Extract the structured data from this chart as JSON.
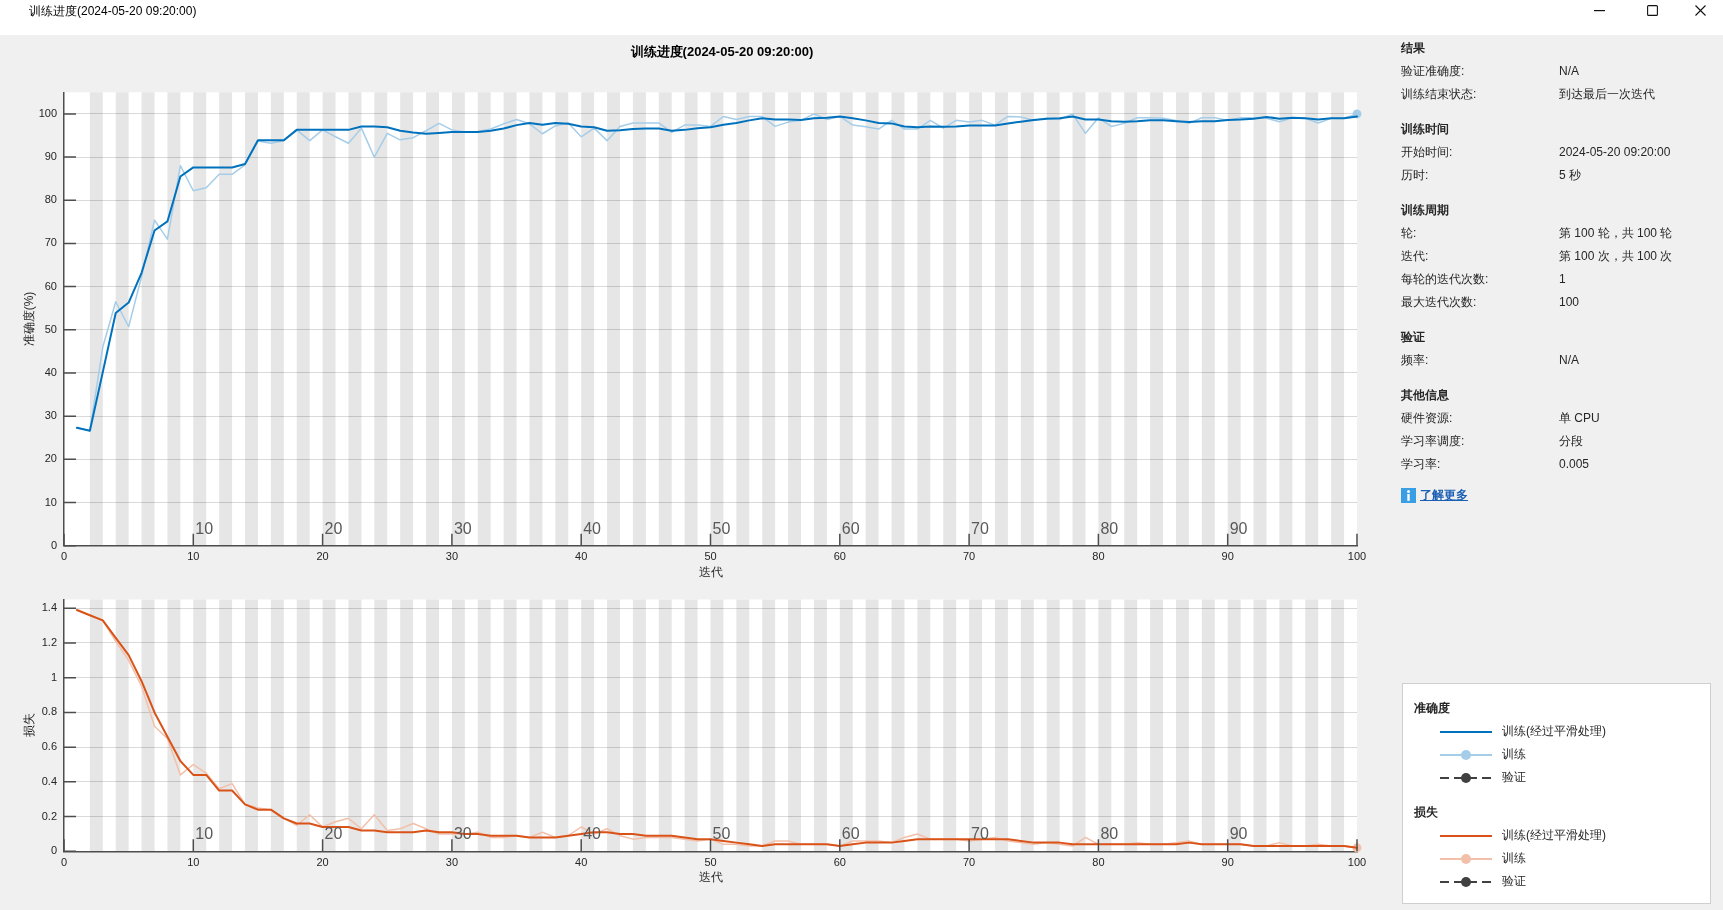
{
  "chart_data": [
    {
      "type": "other",
      "title": "训练进度(2024-05-20 09:20:00)"
    },
    {
      "type": "line",
      "title": "训练进度(2024-05-20 09:20:00)",
      "xlabel": "迭代",
      "ylabel": "准确度(%)",
      "legend_title": "准确度",
      "legend": "bottom right",
      "grid": "y",
      "xlim": [
        0,
        100
      ],
      "xticks": [
        0,
        10,
        20,
        30,
        40,
        50,
        60,
        70,
        80,
        90,
        100
      ],
      "ylim": [
        0,
        105
      ],
      "yticks": [
        0,
        10,
        20,
        30,
        40,
        50,
        60,
        70,
        80,
        90,
        100
      ],
      "x": [
        1,
        2,
        3,
        4,
        5,
        6,
        7,
        8,
        9,
        10,
        11,
        12,
        13,
        14,
        15,
        16,
        17,
        18,
        19,
        20,
        21,
        22,
        23,
        24,
        25,
        26,
        27,
        28,
        29,
        30,
        31,
        32,
        33,
        34,
        35,
        36,
        37,
        38,
        39,
        40,
        41,
        42,
        43,
        44,
        45,
        46,
        47,
        48,
        49,
        50,
        51,
        52,
        53,
        54,
        55,
        56,
        57,
        58,
        59,
        60,
        61,
        62,
        63,
        64,
        65,
        66,
        67,
        68,
        69,
        70,
        71,
        72,
        73,
        74,
        75,
        76,
        77,
        78,
        79,
        80,
        81,
        82,
        83,
        84,
        85,
        86,
        87,
        88,
        89,
        90,
        91,
        92,
        93,
        94,
        95,
        96,
        97,
        98,
        99,
        100
      ],
      "series": [
        {
          "name": "训练(经过平滑处理)",
          "color": "#0072bd",
          "values": [
            27.3,
            26.6,
            40.2,
            53.9,
            56.3,
            63.2,
            73,
            75.1,
            85.5,
            87.6,
            87.6,
            87.6,
            87.6,
            88.4,
            93.9,
            93.9,
            93.9,
            96.3,
            96.3,
            96.3,
            96.3,
            96.3,
            97.1,
            97.1,
            96.9,
            96.1,
            95.7,
            95.4,
            95.6,
            95.8,
            95.8,
            95.8,
            96.1,
            96.6,
            97.4,
            97.9,
            97.5,
            97.9,
            97.7,
            97.1,
            96.9,
            96.1,
            96.2,
            96.5,
            96.6,
            96.6,
            96.1,
            96.3,
            96.7,
            96.9,
            97.5,
            97.9,
            98.5,
            99,
            98.7,
            98.7,
            98.6,
            99,
            99.1,
            99.4,
            99,
            98.5,
            97.9,
            97.8,
            97.1,
            96.9,
            97.1,
            97,
            97.1,
            97.3,
            97.3,
            97.3,
            97.8,
            98.2,
            98.6,
            98.9,
            99,
            99.4,
            98.7,
            98.7,
            98.3,
            98.2,
            98.3,
            98.5,
            98.5,
            98.3,
            98.1,
            98.3,
            98.3,
            98.6,
            98.7,
            98.9,
            99.3,
            98.9,
            99.1,
            99,
            98.7,
            99,
            99,
            99.4
          ]
        },
        {
          "name": "训练",
          "color": "#a6cde8",
          "values": [
            27.3,
            26.6,
            46,
            56.5,
            50.7,
            62.3,
            75.4,
            71,
            88,
            82.2,
            82.9,
            86,
            86,
            88.2,
            93.7,
            93.2,
            93.8,
            96.3,
            93.8,
            96.3,
            94.7,
            93.2,
            96.7,
            90,
            95.5,
            94,
            94.5,
            96.1,
            97.8,
            96.3,
            95.8,
            95.9,
            96.5,
            97.7,
            98.7,
            97.7,
            95.4,
            97.2,
            97.9,
            94.7,
            96.7,
            93.8,
            97.1,
            97.9,
            97.9,
            97.9,
            95.7,
            97.4,
            97.4,
            97.1,
            99.4,
            98.7,
            99.4,
            99.4,
            97.1,
            98.1,
            98.5,
            100,
            98.7,
            99.4,
            97.4,
            97,
            96.5,
            98.5,
            96.5,
            96.5,
            98.5,
            96.7,
            98.5,
            98.1,
            98.5,
            97.4,
            99.4,
            99.3,
            98.5,
            99,
            98.7,
            100,
            95.5,
            99.1,
            97.1,
            97.8,
            99.1,
            99.1,
            99,
            98.5,
            97.8,
            99.1,
            99.1,
            98.5,
            99.1,
            99.1,
            99,
            98.2,
            99.1,
            99,
            97.9,
            99,
            99,
            100
          ]
        },
        {
          "type": "scatter",
          "color": "#a6cde8",
          "marker": "circle",
          "x": [
            100
          ],
          "values": [
            100
          ]
        },
        {
          "name": "验证",
          "color": "#404040",
          "marker": "circle",
          "line_style": "dashed",
          "values": [
            null,
            null,
            null,
            null,
            null,
            null,
            null,
            null,
            null,
            null,
            null,
            null,
            null,
            null,
            null,
            null,
            null,
            null,
            null,
            null,
            null,
            null,
            null,
            null,
            null,
            null,
            null,
            null,
            null,
            null,
            null,
            null,
            null,
            null,
            null,
            null,
            null,
            null,
            null,
            null,
            null,
            null,
            null,
            null,
            null,
            null,
            null,
            null,
            null,
            null,
            null,
            null,
            null,
            null,
            null,
            null,
            null,
            null,
            null,
            null,
            null,
            null,
            null,
            null,
            null,
            null,
            null,
            null,
            null,
            null,
            null,
            null,
            null,
            null,
            null,
            null,
            null,
            null,
            null,
            null,
            null,
            null,
            null,
            null,
            null,
            null,
            null,
            null,
            null,
            null,
            null,
            null,
            null,
            null,
            null,
            null,
            null,
            null,
            null,
            null
          ]
        }
      ],
      "bands": [
        {
          "axis": "x",
          "from": 2,
          "to": 3,
          "color": "#e6e6e6"
        },
        {
          "axis": "x",
          "from": 4,
          "to": 5,
          "color": "#e6e6e6"
        },
        {
          "axis": "x",
          "from": 6,
          "to": 7,
          "color": "#e6e6e6"
        },
        {
          "axis": "x",
          "from": 8,
          "to": 9,
          "color": "#e6e6e6"
        },
        {
          "axis": "x",
          "from": 10,
          "to": 11,
          "color": "#e6e6e6"
        },
        {
          "axis": "x",
          "from": 12,
          "to": 13,
          "color": "#e6e6e6"
        },
        {
          "axis": "x",
          "from": 14,
          "to": 15,
          "color": "#e6e6e6"
        },
        {
          "axis": "x",
          "from": 16,
          "to": 17,
          "color": "#e6e6e6"
        },
        {
          "axis": "x",
          "from": 18,
          "to": 19,
          "color": "#e6e6e6"
        },
        {
          "axis": "x",
          "from": 20,
          "to": 21,
          "color": "#e6e6e6"
        },
        {
          "axis": "x",
          "from": 22,
          "to": 23,
          "color": "#e6e6e6"
        },
        {
          "axis": "x",
          "from": 24,
          "to": 25,
          "color": "#e6e6e6"
        },
        {
          "axis": "x",
          "from": 26,
          "to": 27,
          "color": "#e6e6e6"
        },
        {
          "axis": "x",
          "from": 28,
          "to": 29,
          "color": "#e6e6e6"
        },
        {
          "axis": "x",
          "from": 30,
          "to": 31,
          "color": "#e6e6e6"
        },
        {
          "axis": "x",
          "from": 32,
          "to": 33,
          "color": "#e6e6e6"
        },
        {
          "axis": "x",
          "from": 34,
          "to": 35,
          "color": "#e6e6e6"
        },
        {
          "axis": "x",
          "from": 36,
          "to": 37,
          "color": "#e6e6e6"
        },
        {
          "axis": "x",
          "from": 38,
          "to": 39,
          "color": "#e6e6e6"
        },
        {
          "axis": "x",
          "from": 40,
          "to": 41,
          "color": "#e6e6e6"
        },
        {
          "axis": "x",
          "from": 42,
          "to": 43,
          "color": "#e6e6e6"
        },
        {
          "axis": "x",
          "from": 44,
          "to": 45,
          "color": "#e6e6e6"
        },
        {
          "axis": "x",
          "from": 46,
          "to": 47,
          "color": "#e6e6e6"
        },
        {
          "axis": "x",
          "from": 48,
          "to": 49,
          "color": "#e6e6e6"
        },
        {
          "axis": "x",
          "from": 50,
          "to": 51,
          "color": "#e6e6e6"
        },
        {
          "axis": "x",
          "from": 52,
          "to": 53,
          "color": "#e6e6e6"
        },
        {
          "axis": "x",
          "from": 54,
          "to": 55,
          "color": "#e6e6e6"
        },
        {
          "axis": "x",
          "from": 56,
          "to": 57,
          "color": "#e6e6e6"
        },
        {
          "axis": "x",
          "from": 58,
          "to": 59,
          "color": "#e6e6e6"
        },
        {
          "axis": "x",
          "from": 60,
          "to": 61,
          "color": "#e6e6e6"
        },
        {
          "axis": "x",
          "from": 62,
          "to": 63,
          "color": "#e6e6e6"
        },
        {
          "axis": "x",
          "from": 64,
          "to": 65,
          "color": "#e6e6e6"
        },
        {
          "axis": "x",
          "from": 66,
          "to": 67,
          "color": "#e6e6e6"
        },
        {
          "axis": "x",
          "from": 68,
          "to": 69,
          "color": "#e6e6e6"
        },
        {
          "axis": "x",
          "from": 70,
          "to": 71,
          "color": "#e6e6e6"
        },
        {
          "axis": "x",
          "from": 72,
          "to": 73,
          "color": "#e6e6e6"
        },
        {
          "axis": "x",
          "from": 74,
          "to": 75,
          "color": "#e6e6e6"
        },
        {
          "axis": "x",
          "from": 76,
          "to": 77,
          "color": "#e6e6e6"
        },
        {
          "axis": "x",
          "from": 78,
          "to": 79,
          "color": "#e6e6e6"
        },
        {
          "axis": "x",
          "from": 80,
          "to": 81,
          "color": "#e6e6e6"
        },
        {
          "axis": "x",
          "from": 82,
          "to": 83,
          "color": "#e6e6e6"
        },
        {
          "axis": "x",
          "from": 84,
          "to": 85,
          "color": "#e6e6e6"
        },
        {
          "axis": "x",
          "from": 86,
          "to": 87,
          "color": "#e6e6e6"
        },
        {
          "axis": "x",
          "from": 88,
          "to": 89,
          "color": "#e6e6e6"
        },
        {
          "axis": "x",
          "from": 90,
          "to": 91,
          "color": "#e6e6e6"
        },
        {
          "axis": "x",
          "from": 92,
          "to": 93,
          "color": "#e6e6e6"
        },
        {
          "axis": "x",
          "from": 94,
          "to": 95,
          "color": "#e6e6e6"
        },
        {
          "axis": "x",
          "from": 96,
          "to": 97,
          "color": "#e6e6e6"
        },
        {
          "axis": "x",
          "from": 98,
          "to": 99,
          "color": "#e6e6e6"
        }
      ],
      "annotations": [
        {
          "text": "10",
          "x": 10,
          "y": 0
        },
        {
          "text": "20",
          "x": 20,
          "y": 0
        },
        {
          "text": "30",
          "x": 30,
          "y": 0
        },
        {
          "text": "40",
          "x": 40,
          "y": 0
        },
        {
          "text": "50",
          "x": 50,
          "y": 0
        },
        {
          "text": "60",
          "x": 60,
          "y": 0
        },
        {
          "text": "70",
          "x": 70,
          "y": 0
        },
        {
          "text": "80",
          "x": 80,
          "y": 0
        },
        {
          "text": "90",
          "x": 90,
          "y": 0
        }
      ]
    },
    {
      "type": "line",
      "xlabel": "迭代",
      "ylabel": "损失",
      "legend_title": "损失",
      "legend": "right",
      "grid": "y",
      "xlim": [
        0,
        100
      ],
      "xticks": [
        0,
        10,
        20,
        30,
        40,
        50,
        60,
        70,
        80,
        90,
        100
      ],
      "ylim": [
        0,
        1.45
      ],
      "yticks": [
        0,
        0.2,
        0.4,
        0.6,
        0.8,
        1,
        1.2,
        1.4
      ],
      "x": [
        1,
        2,
        3,
        4,
        5,
        6,
        7,
        8,
        9,
        10,
        11,
        12,
        13,
        14,
        15,
        16,
        17,
        18,
        19,
        20,
        21,
        22,
        23,
        24,
        25,
        26,
        27,
        28,
        29,
        30,
        31,
        32,
        33,
        34,
        35,
        36,
        37,
        38,
        39,
        40,
        41,
        42,
        43,
        44,
        45,
        46,
        47,
        48,
        49,
        50,
        51,
        52,
        53,
        54,
        55,
        56,
        57,
        58,
        59,
        60,
        61,
        62,
        63,
        64,
        65,
        66,
        67,
        68,
        69,
        70,
        71,
        72,
        73,
        74,
        75,
        76,
        77,
        78,
        79,
        80,
        81,
        82,
        83,
        84,
        85,
        86,
        87,
        88,
        89,
        90,
        91,
        92,
        93,
        94,
        95,
        96,
        97,
        98,
        99,
        100
      ],
      "series": [
        {
          "name": "训练(经过平滑处理)",
          "color": "#d95319",
          "values": [
            1.39,
            1.36,
            1.33,
            1.23,
            1.13,
            0.98,
            0.8,
            0.66,
            0.52,
            0.44,
            0.44,
            0.35,
            0.35,
            0.27,
            0.24,
            0.24,
            0.19,
            0.16,
            0.16,
            0.14,
            0.14,
            0.14,
            0.12,
            0.12,
            0.11,
            0.11,
            0.11,
            0.12,
            0.11,
            0.11,
            0.1,
            0.1,
            0.09,
            0.09,
            0.09,
            0.08,
            0.08,
            0.08,
            0.09,
            0.1,
            0.11,
            0.11,
            0.1,
            0.1,
            0.09,
            0.09,
            0.09,
            0.08,
            0.07,
            0.07,
            0.06,
            0.05,
            0.04,
            0.03,
            0.04,
            0.04,
            0.04,
            0.04,
            0.04,
            0.03,
            0.04,
            0.05,
            0.05,
            0.05,
            0.06,
            0.07,
            0.07,
            0.07,
            0.07,
            0.07,
            0.07,
            0.07,
            0.07,
            0.06,
            0.05,
            0.05,
            0.05,
            0.04,
            0.04,
            0.04,
            0.04,
            0.04,
            0.04,
            0.04,
            0.04,
            0.04,
            0.05,
            0.04,
            0.04,
            0.04,
            0.04,
            0.03,
            0.03,
            0.03,
            0.03,
            0.03,
            0.03,
            0.03,
            0.03,
            0.02
          ]
        },
        {
          "name": "训练",
          "color": "#f2c0aa",
          "values": [
            1.39,
            1.36,
            1.33,
            1.21,
            1.1,
            0.95,
            0.72,
            0.65,
            0.44,
            0.5,
            0.45,
            0.36,
            0.39,
            0.27,
            0.25,
            0.24,
            0.19,
            0.15,
            0.21,
            0.14,
            0.17,
            0.19,
            0.13,
            0.21,
            0.12,
            0.13,
            0.16,
            0.13,
            0.1,
            0.1,
            0.1,
            0.11,
            0.08,
            0.08,
            0.09,
            0.08,
            0.11,
            0.08,
            0.09,
            0.14,
            0.1,
            0.13,
            0.09,
            0.07,
            0.08,
            0.08,
            0.08,
            0.07,
            0.06,
            0.07,
            0.04,
            0.04,
            0.03,
            0.03,
            0.06,
            0.06,
            0.04,
            0.04,
            0.04,
            0.03,
            0.06,
            0.06,
            0.06,
            0.05,
            0.08,
            0.1,
            0.07,
            0.07,
            0.07,
            0.06,
            0.07,
            0.08,
            0.06,
            0.05,
            0.04,
            0.05,
            0.04,
            0.03,
            0.08,
            0.04,
            0.04,
            0.04,
            0.05,
            0.04,
            0.04,
            0.05,
            0.06,
            0.04,
            0.04,
            0.04,
            0.04,
            0.03,
            0.03,
            0.05,
            0.03,
            0.03,
            0.04,
            0.03,
            0.03,
            0.02
          ]
        },
        {
          "type": "scatter",
          "color": "#f2c0aa",
          "marker": "circle",
          "x": [
            100
          ],
          "values": [
            0.02
          ]
        },
        {
          "name": "验证",
          "color": "#404040",
          "marker": "circle",
          "line_style": "dashed",
          "values": [
            null,
            null,
            null,
            null,
            null,
            null,
            null,
            null,
            null,
            null,
            null,
            null,
            null,
            null,
            null,
            null,
            null,
            null,
            null,
            null,
            null,
            null,
            null,
            null,
            null,
            null,
            null,
            null,
            null,
            null,
            null,
            null,
            null,
            null,
            null,
            null,
            null,
            null,
            null,
            null,
            null,
            null,
            null,
            null,
            null,
            null,
            null,
            null,
            null,
            null,
            null,
            null,
            null,
            null,
            null,
            null,
            null,
            null,
            null,
            null,
            null,
            null,
            null,
            null,
            null,
            null,
            null,
            null,
            null,
            null,
            null,
            null,
            null,
            null,
            null,
            null,
            null,
            null,
            null,
            null,
            null,
            null,
            null,
            null,
            null,
            null,
            null,
            null,
            null,
            null,
            null,
            null,
            null,
            null,
            null,
            null,
            null,
            null,
            null,
            null
          ]
        }
      ],
      "bands": [
        {
          "axis": "x",
          "from": 2,
          "to": 3,
          "color": "#e6e6e6"
        },
        {
          "axis": "x",
          "from": 4,
          "to": 5,
          "color": "#e6e6e6"
        },
        {
          "axis": "x",
          "from": 6,
          "to": 7,
          "color": "#e6e6e6"
        },
        {
          "axis": "x",
          "from": 8,
          "to": 9,
          "color": "#e6e6e6"
        },
        {
          "axis": "x",
          "from": 10,
          "to": 11,
          "color": "#e6e6e6"
        },
        {
          "axis": "x",
          "from": 12,
          "to": 13,
          "color": "#e6e6e6"
        },
        {
          "axis": "x",
          "from": 14,
          "to": 15,
          "color": "#e6e6e6"
        },
        {
          "axis": "x",
          "from": 16,
          "to": 17,
          "color": "#e6e6e6"
        },
        {
          "axis": "x",
          "from": 18,
          "to": 19,
          "color": "#e6e6e6"
        },
        {
          "axis": "x",
          "from": 20,
          "to": 21,
          "color": "#e6e6e6"
        },
        {
          "axis": "x",
          "from": 22,
          "to": 23,
          "color": "#e6e6e6"
        },
        {
          "axis": "x",
          "from": 24,
          "to": 25,
          "color": "#e6e6e6"
        },
        {
          "axis": "x",
          "from": 26,
          "to": 27,
          "color": "#e6e6e6"
        },
        {
          "axis": "x",
          "from": 28,
          "to": 29,
          "color": "#e6e6e6"
        },
        {
          "axis": "x",
          "from": 30,
          "to": 31,
          "color": "#e6e6e6"
        },
        {
          "axis": "x",
          "from": 32,
          "to": 33,
          "color": "#e6e6e6"
        },
        {
          "axis": "x",
          "from": 34,
          "to": 35,
          "color": "#e6e6e6"
        },
        {
          "axis": "x",
          "from": 36,
          "to": 37,
          "color": "#e6e6e6"
        },
        {
          "axis": "x",
          "from": 38,
          "to": 39,
          "color": "#e6e6e6"
        },
        {
          "axis": "x",
          "from": 40,
          "to": 41,
          "color": "#e6e6e6"
        },
        {
          "axis": "x",
          "from": 42,
          "to": 43,
          "color": "#e6e6e6"
        },
        {
          "axis": "x",
          "from": 44,
          "to": 45,
          "color": "#e6e6e6"
        },
        {
          "axis": "x",
          "from": 46,
          "to": 47,
          "color": "#e6e6e6"
        },
        {
          "axis": "x",
          "from": 48,
          "to": 49,
          "color": "#e6e6e6"
        },
        {
          "axis": "x",
          "from": 50,
          "to": 51,
          "color": "#e6e6e6"
        },
        {
          "axis": "x",
          "from": 52,
          "to": 53,
          "color": "#e6e6e6"
        },
        {
          "axis": "x",
          "from": 54,
          "to": 55,
          "color": "#e6e6e6"
        },
        {
          "axis": "x",
          "from": 56,
          "to": 57,
          "color": "#e6e6e6"
        },
        {
          "axis": "x",
          "from": 58,
          "to": 59,
          "color": "#e6e6e6"
        },
        {
          "axis": "x",
          "from": 60,
          "to": 61,
          "color": "#e6e6e6"
        },
        {
          "axis": "x",
          "from": 62,
          "to": 63,
          "color": "#e6e6e6"
        },
        {
          "axis": "x",
          "from": 64,
          "to": 65,
          "color": "#e6e6e6"
        },
        {
          "axis": "x",
          "from": 66,
          "to": 67,
          "color": "#e6e6e6"
        },
        {
          "axis": "x",
          "from": 68,
          "to": 69,
          "color": "#e6e6e6"
        },
        {
          "axis": "x",
          "from": 70,
          "to": 71,
          "color": "#e6e6e6"
        },
        {
          "axis": "x",
          "from": 72,
          "to": 73,
          "color": "#e6e6e6"
        },
        {
          "axis": "x",
          "from": 74,
          "to": 75,
          "color": "#e6e6e6"
        },
        {
          "axis": "x",
          "from": 76,
          "to": 77,
          "color": "#e6e6e6"
        },
        {
          "axis": "x",
          "from": 78,
          "to": 79,
          "color": "#e6e6e6"
        },
        {
          "axis": "x",
          "from": 80,
          "to": 81,
          "color": "#e6e6e6"
        },
        {
          "axis": "x",
          "from": 82,
          "to": 83,
          "color": "#e6e6e6"
        },
        {
          "axis": "x",
          "from": 84,
          "to": 85,
          "color": "#e6e6e6"
        },
        {
          "axis": "x",
          "from": 86,
          "to": 87,
          "color": "#e6e6e6"
        },
        {
          "axis": "x",
          "from": 88,
          "to": 89,
          "color": "#e6e6e6"
        },
        {
          "axis": "x",
          "from": 90,
          "to": 91,
          "color": "#e6e6e6"
        },
        {
          "axis": "x",
          "from": 92,
          "to": 93,
          "color": "#e6e6e6"
        },
        {
          "axis": "x",
          "from": 94,
          "to": 95,
          "color": "#e6e6e6"
        },
        {
          "axis": "x",
          "from": 96,
          "to": 97,
          "color": "#e6e6e6"
        },
        {
          "axis": "x",
          "from": 98,
          "to": 99,
          "color": "#e6e6e6"
        }
      ],
      "annotations": [
        {
          "text": "10",
          "x": 10,
          "y": 0
        },
        {
          "text": "20",
          "x": 20,
          "y": 0
        },
        {
          "text": "30",
          "x": 30,
          "y": 0
        },
        {
          "text": "40",
          "x": 40,
          "y": 0
        },
        {
          "text": "50",
          "x": 50,
          "y": 0
        },
        {
          "text": "60",
          "x": 60,
          "y": 0
        },
        {
          "text": "70",
          "x": 70,
          "y": 0
        },
        {
          "text": "80",
          "x": 80,
          "y": 0
        },
        {
          "text": "90",
          "x": 90,
          "y": 0
        }
      ]
    },
    {
      "type": "other",
      "title": "结果",
      "annotations": [
        "验证准确度:",
        "N/A",
        "训练结束状态:",
        "到达最后一次迭代"
      ]
    },
    {
      "type": "other",
      "title": "训练时间",
      "annotations": [
        "开始时间:",
        "2024-05-20 09:20:00",
        "历时:",
        "5 秒"
      ]
    },
    {
      "type": "other",
      "title": "训练周期",
      "annotations": [
        "轮:",
        "第 100 轮，共 100 轮",
        "迭代:",
        "第 100 次，共 100 次",
        "每轮的迭代次数:",
        "1",
        "最大迭代次数:",
        "100"
      ]
    },
    {
      "type": "other",
      "title": "验证",
      "annotations": [
        "频率:",
        "N/A"
      ]
    },
    {
      "type": "other",
      "title": "其他信息",
      "annotations": [
        "硬件资源:",
        "单 CPU",
        "学习率调度:",
        "分段",
        "学习率:",
        "0.005"
      ]
    },
    {
      "type": "other",
      "annotations": [
        "了解更多"
      ]
    }
  ]
}
